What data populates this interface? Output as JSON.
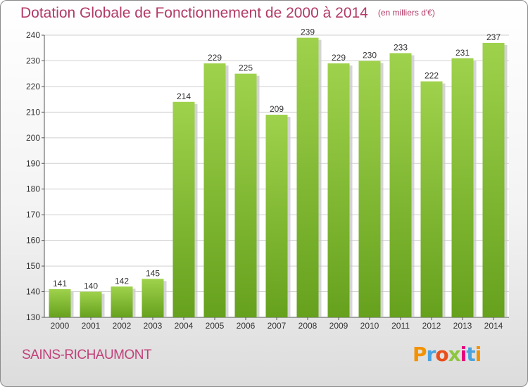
{
  "chart_data": {
    "type": "bar",
    "title": "Dotation Globale de Fonctionnement de 2000 à 2014",
    "unit_label": "(en milliers d'€)",
    "categories": [
      "2000",
      "2001",
      "2002",
      "2003",
      "2004",
      "2005",
      "2006",
      "2007",
      "2008",
      "2009",
      "2010",
      "2011",
      "2012",
      "2013",
      "2014"
    ],
    "values": [
      141,
      140,
      142,
      145,
      214,
      229,
      225,
      209,
      239,
      229,
      230,
      233,
      222,
      231,
      237
    ],
    "ylim": [
      130,
      240
    ],
    "yticks": [
      130,
      140,
      150,
      160,
      170,
      180,
      190,
      200,
      210,
      220,
      230,
      240
    ],
    "grid": true,
    "bar_color": "#8dc63f",
    "xlabel": "",
    "ylabel": ""
  },
  "commune": "SAINS-RICHAUMONT",
  "logo": {
    "letters": [
      "P",
      "r",
      "o",
      "x",
      "i",
      "t",
      "i"
    ],
    "colors": [
      "#f39200",
      "#4aa3df",
      "#e94e1b",
      "#8dc63f",
      "#e6007e",
      "#4aa3df",
      "#f39200"
    ]
  }
}
